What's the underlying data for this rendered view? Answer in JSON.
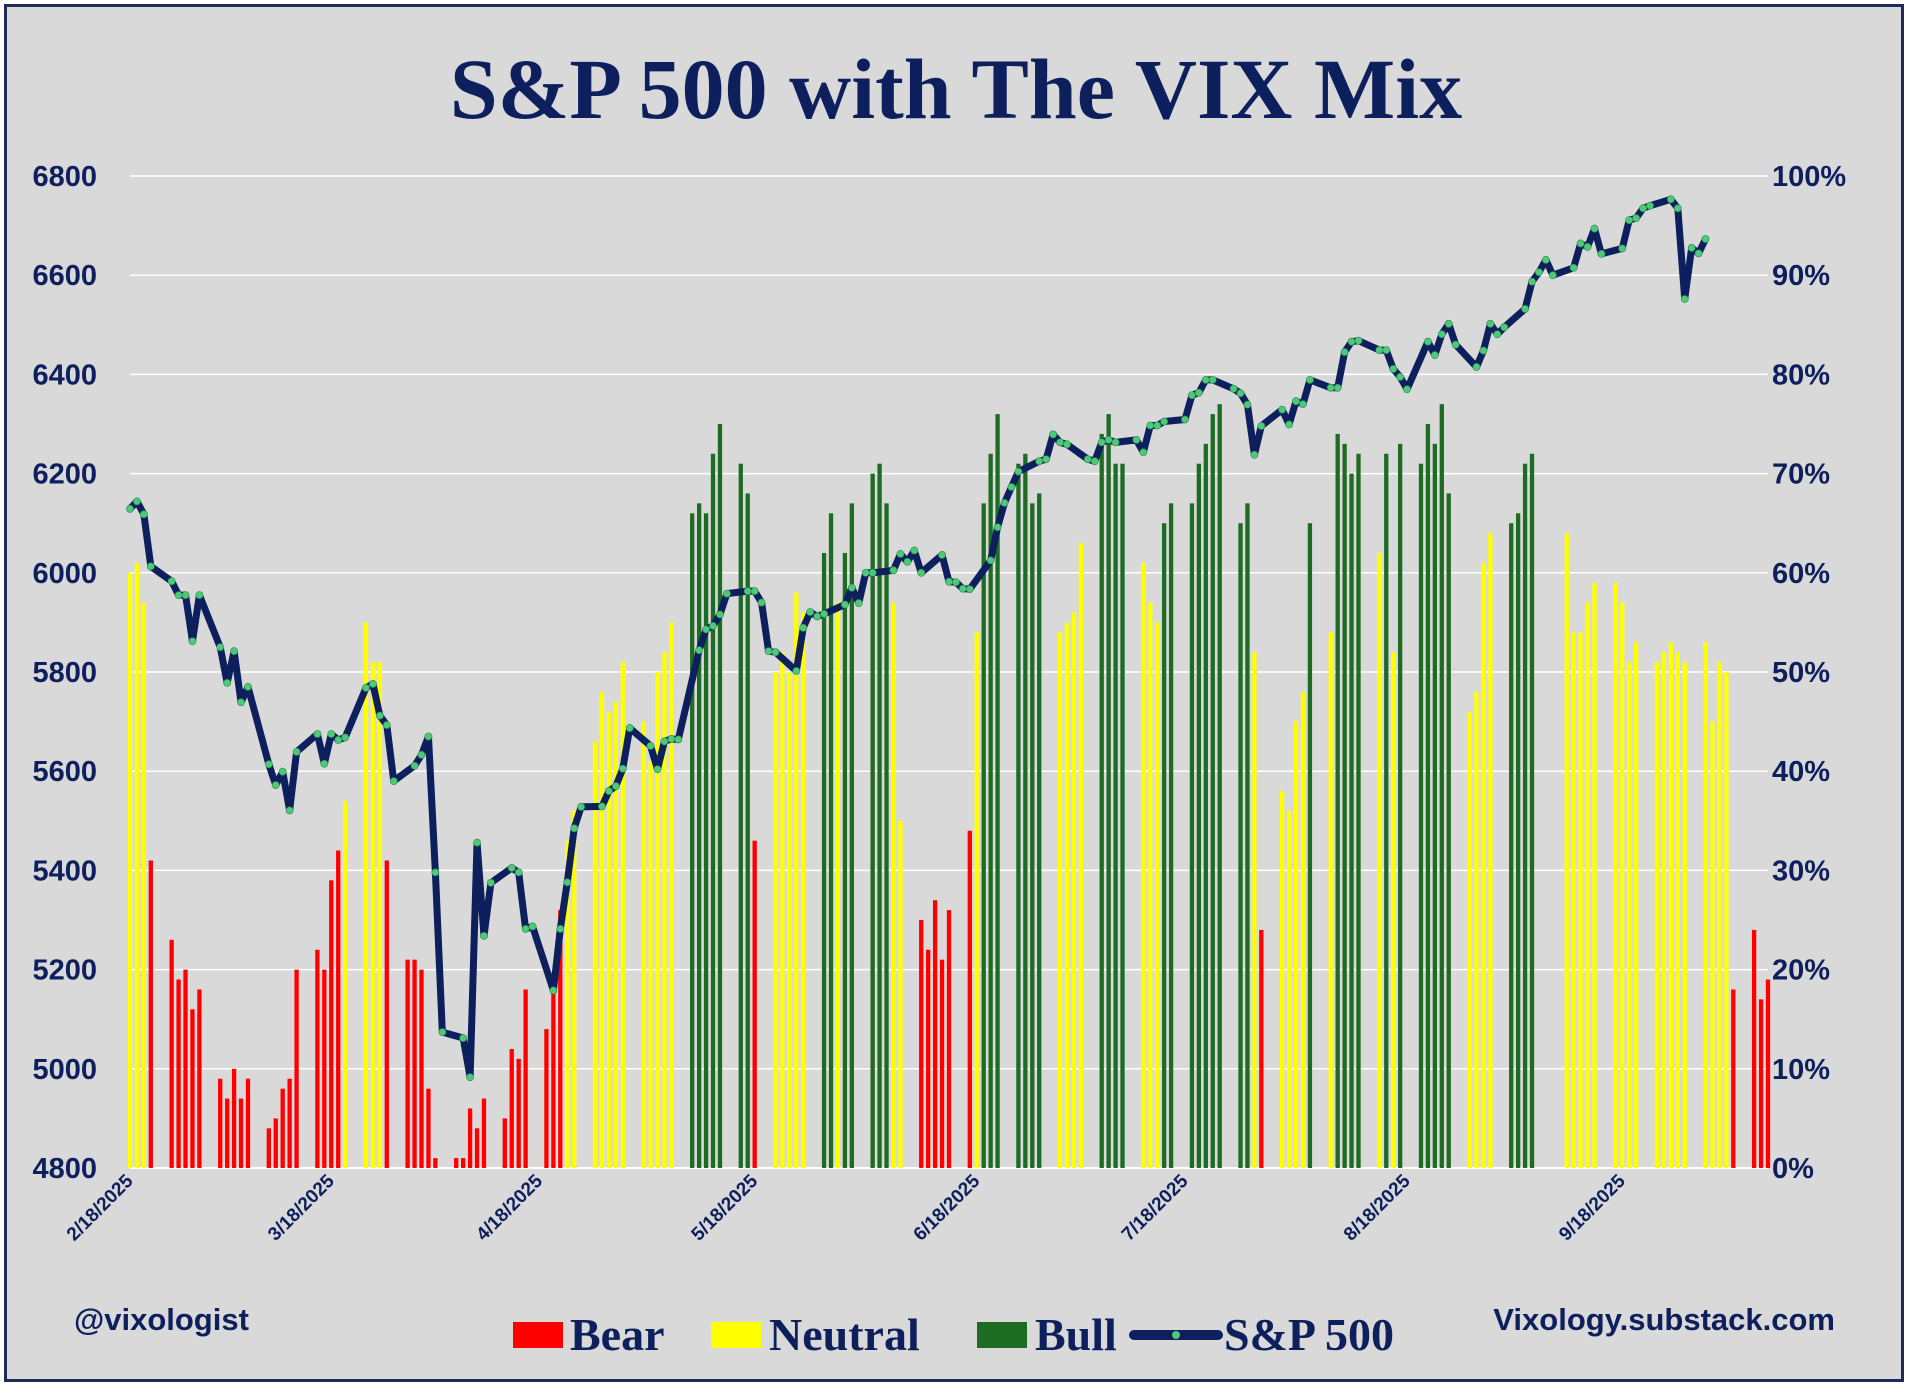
{
  "colors": {
    "background": "#d9d9d9",
    "text": "#0d1f5c",
    "bear": "#ff0000",
    "neutral": "#ffff00",
    "bull": "#1e6b24",
    "spx_line": "#0d1f5c",
    "spx_marker": "#4ec97a",
    "grid": "#ffffff"
  },
  "chart_data": {
    "type": "bar",
    "title": "S&P 500 with The VIX Mix",
    "left_axis": {
      "min": 4800,
      "max": 6800,
      "ticks": [
        "6800",
        "6600",
        "6400",
        "6200",
        "6000",
        "5800",
        "5600",
        "5400",
        "5200",
        "5000",
        "4800"
      ]
    },
    "right_axis": {
      "min": 0,
      "max": 100,
      "ticks": [
        "100%",
        "90%",
        "80%",
        "70%",
        "60%",
        "50%",
        "40%",
        "30%",
        "20%",
        "10%",
        "0%"
      ]
    },
    "x_tick_labels": [
      "2/18/2025",
      "3/18/2025",
      "4/18/2025",
      "5/18/2025",
      "6/18/2025",
      "7/18/2025",
      "8/18/2025",
      "9/18/2025"
    ],
    "grid": true,
    "legend_position": "bottom",
    "legend": [
      "Bear",
      "Neutral",
      "Bull",
      "S&P 500"
    ],
    "series_bars": {
      "name_key": "regime",
      "values_pct": [
        60,
        61,
        57,
        31,
        null,
        null,
        23,
        19,
        20,
        16,
        18,
        null,
        null,
        9,
        7,
        10,
        7,
        9,
        null,
        null,
        4,
        5,
        8,
        9,
        20,
        null,
        null,
        22,
        20,
        29,
        32,
        37,
        null,
        null,
        55,
        51,
        51,
        31,
        null,
        null,
        21,
        21,
        20,
        8,
        1,
        null,
        null,
        1,
        1,
        6,
        4,
        7,
        null,
        null,
        5,
        12,
        11,
        18,
        null,
        null,
        14,
        19,
        26,
        33,
        36,
        null,
        null,
        43,
        48,
        46,
        47,
        51,
        null,
        null,
        45,
        41,
        50,
        52,
        55,
        null,
        null,
        66,
        67,
        66,
        72,
        75,
        null,
        null,
        71,
        68,
        33,
        null,
        null,
        50,
        52,
        50,
        58,
        56,
        null,
        null,
        62,
        66,
        57,
        62,
        67,
        null,
        null,
        70,
        71,
        67,
        57,
        35,
        null,
        null,
        25,
        22,
        27,
        21,
        26,
        null,
        null,
        34,
        54,
        67,
        72,
        76,
        null,
        null,
        71,
        72,
        67,
        68,
        null,
        null,
        54,
        55,
        56,
        63,
        null,
        null,
        74,
        76,
        71,
        71,
        null,
        null,
        61,
        57,
        55,
        65,
        67,
        null,
        null,
        67,
        71,
        73,
        76,
        77,
        null,
        null,
        65,
        67,
        52,
        24,
        null,
        null,
        38,
        36,
        45,
        48,
        65,
        null,
        null,
        54,
        74,
        73,
        70,
        72,
        null,
        null,
        62,
        72,
        52,
        73,
        null,
        null,
        71,
        75,
        73,
        77,
        68,
        null,
        null,
        46,
        48,
        61,
        64,
        null,
        null,
        65,
        66,
        71,
        72,
        null,
        null,
        null,
        null,
        64,
        54,
        54,
        57,
        59,
        null,
        null,
        59,
        57,
        51,
        53,
        null,
        null,
        51,
        52,
        53,
        52,
        51,
        null,
        null,
        53,
        45,
        51,
        50,
        18,
        null,
        null,
        24,
        17,
        19
      ],
      "regimes": [
        "n",
        "n",
        "n",
        "r",
        null,
        null,
        "r",
        "r",
        "r",
        "r",
        "r",
        null,
        null,
        "r",
        "r",
        "r",
        "r",
        "r",
        null,
        null,
        "r",
        "r",
        "r",
        "r",
        "r",
        null,
        null,
        "r",
        "r",
        "r",
        "r",
        "n",
        null,
        null,
        "n",
        "n",
        "n",
        "r",
        null,
        null,
        "r",
        "r",
        "r",
        "r",
        "r",
        null,
        null,
        "r",
        "r",
        "r",
        "r",
        "r",
        null,
        null,
        "r",
        "r",
        "r",
        "r",
        null,
        null,
        "r",
        "r",
        "r",
        "n",
        "n",
        null,
        null,
        "n",
        "n",
        "n",
        "n",
        "n",
        null,
        null,
        "n",
        "n",
        "n",
        "n",
        "n",
        null,
        null,
        "g",
        "g",
        "g",
        "g",
        "g",
        null,
        null,
        "g",
        "g",
        "r",
        null,
        null,
        "n",
        "n",
        "n",
        "n",
        "n",
        null,
        null,
        "g",
        "g",
        "n",
        "g",
        "g",
        null,
        null,
        "g",
        "g",
        "g",
        "n",
        "n",
        null,
        null,
        "r",
        "r",
        "r",
        "r",
        "r",
        null,
        null,
        "r",
        "n",
        "g",
        "g",
        "g",
        null,
        null,
        "g",
        "g",
        "g",
        "g",
        null,
        null,
        "n",
        "n",
        "n",
        "n",
        null,
        null,
        "g",
        "g",
        "g",
        "g",
        null,
        null,
        "n",
        "n",
        "n",
        "g",
        "g",
        null,
        null,
        "g",
        "g",
        "g",
        "g",
        "g",
        null,
        null,
        "g",
        "g",
        "n",
        "r",
        null,
        null,
        "n",
        "n",
        "n",
        "n",
        "g",
        null,
        null,
        "n",
        "g",
        "g",
        "g",
        "g",
        null,
        null,
        "n",
        "g",
        "n",
        "g",
        null,
        null,
        "g",
        "g",
        "g",
        "g",
        "g",
        null,
        null,
        "n",
        "n",
        "n",
        "n",
        null,
        null,
        "g",
        "g",
        "g",
        "g",
        null,
        null,
        null,
        null,
        "n",
        "n",
        "n",
        "n",
        "n",
        null,
        null,
        "n",
        "n",
        "n",
        "n",
        null,
        null,
        "n",
        "n",
        "n",
        "n",
        "n",
        null,
        null,
        "n",
        "n",
        "n",
        "n",
        "r",
        null,
        null,
        "r",
        "r",
        "r"
      ]
    },
    "series_line": {
      "name": "S&P 500",
      "points": [
        [
          0,
          6129
        ],
        [
          1,
          6144
        ],
        [
          2,
          6118
        ],
        [
          3,
          6013
        ],
        [
          6,
          5983
        ],
        [
          7,
          5955
        ],
        [
          8,
          5955
        ],
        [
          9,
          5862
        ],
        [
          10,
          5955
        ],
        [
          13,
          5850
        ],
        [
          14,
          5778
        ],
        [
          15,
          5842
        ],
        [
          16,
          5739
        ],
        [
          17,
          5770
        ],
        [
          20,
          5614
        ],
        [
          21,
          5572
        ],
        [
          22,
          5599
        ],
        [
          23,
          5521
        ],
        [
          24,
          5639
        ],
        [
          27,
          5675
        ],
        [
          28,
          5615
        ],
        [
          29,
          5675
        ],
        [
          30,
          5663
        ],
        [
          31,
          5668
        ],
        [
          34,
          5768
        ],
        [
          35,
          5776
        ],
        [
          36,
          5712
        ],
        [
          37,
          5693
        ],
        [
          38,
          5580
        ],
        [
          41,
          5611
        ],
        [
          42,
          5633
        ],
        [
          43,
          5670
        ],
        [
          44,
          5396
        ],
        [
          45,
          5074
        ],
        [
          48,
          5062
        ],
        [
          49,
          4983
        ],
        [
          50,
          5456
        ],
        [
          51,
          5268
        ],
        [
          52,
          5375
        ],
        [
          55,
          5405
        ],
        [
          56,
          5396
        ],
        [
          57,
          5282
        ],
        [
          58,
          5287
        ],
        [
          61,
          5158
        ],
        [
          62,
          5282
        ],
        [
          63,
          5376
        ],
        [
          64,
          5485
        ],
        [
          65,
          5528
        ],
        [
          68,
          5529
        ],
        [
          69,
          5560
        ],
        [
          70,
          5570
        ],
        [
          71,
          5605
        ],
        [
          72,
          5687
        ],
        [
          75,
          5651
        ],
        [
          76,
          5604
        ],
        [
          77,
          5660
        ],
        [
          78,
          5665
        ],
        [
          79,
          5664
        ],
        [
          82,
          5844
        ],
        [
          83,
          5886
        ],
        [
          84,
          5893
        ],
        [
          85,
          5916
        ],
        [
          86,
          5958
        ],
        [
          89,
          5963
        ],
        [
          90,
          5963
        ],
        [
          91,
          5940
        ],
        [
          92,
          5842
        ],
        [
          93,
          5840
        ],
        [
          96,
          5802
        ],
        [
          97,
          5889
        ],
        [
          98,
          5921
        ],
        [
          99,
          5912
        ],
        [
          100,
          5917
        ],
        [
          103,
          5936
        ],
        [
          104,
          5970
        ],
        [
          105,
          5939
        ],
        [
          106,
          6000
        ],
        [
          107,
          6000
        ],
        [
          110,
          6005
        ],
        [
          111,
          6038
        ],
        [
          112,
          6022
        ],
        [
          113,
          6045
        ],
        [
          114,
          6000
        ],
        [
          117,
          6036
        ],
        [
          118,
          5982
        ],
        [
          119,
          5981
        ],
        [
          120,
          5968
        ],
        [
          121,
          5967
        ],
        [
          124,
          6025
        ],
        [
          125,
          6092
        ],
        [
          126,
          6141
        ],
        [
          127,
          6173
        ],
        [
          128,
          6204
        ],
        [
          131,
          6225
        ],
        [
          132,
          6229
        ],
        [
          133,
          6279
        ],
        [
          134,
          6263
        ],
        [
          135,
          6259
        ],
        [
          138,
          6229
        ],
        [
          139,
          6225
        ],
        [
          140,
          6263
        ],
        [
          141,
          6268
        ],
        [
          142,
          6263
        ],
        [
          145,
          6268
        ],
        [
          146,
          6243
        ],
        [
          147,
          6297
        ],
        [
          148,
          6297
        ],
        [
          149,
          6305
        ],
        [
          152,
          6309
        ],
        [
          153,
          6358
        ],
        [
          154,
          6363
        ],
        [
          155,
          6389
        ],
        [
          156,
          6389
        ],
        [
          159,
          6371
        ],
        [
          160,
          6362
        ],
        [
          161,
          6339
        ],
        [
          162,
          6238
        ],
        [
          163,
          6296
        ],
        [
          166,
          6329
        ],
        [
          167,
          6299
        ],
        [
          168,
          6346
        ],
        [
          169,
          6340
        ],
        [
          170,
          6389
        ],
        [
          173,
          6373
        ],
        [
          174,
          6373
        ],
        [
          175,
          6445
        ],
        [
          176,
          6466
        ],
        [
          177,
          6468
        ],
        [
          180,
          6449
        ],
        [
          181,
          6449
        ],
        [
          182,
          6411
        ],
        [
          183,
          6395
        ],
        [
          184,
          6370
        ],
        [
          187,
          6466
        ],
        [
          188,
          6439
        ],
        [
          189,
          6481
        ],
        [
          190,
          6502
        ],
        [
          191,
          6460
        ],
        [
          194,
          6415
        ],
        [
          195,
          6448
        ],
        [
          196,
          6502
        ],
        [
          197,
          6481
        ],
        [
          198,
          6495
        ],
        [
          201,
          6532
        ],
        [
          202,
          6587
        ],
        [
          203,
          6606
        ],
        [
          204,
          6631
        ],
        [
          205,
          6600
        ],
        [
          208,
          6615
        ],
        [
          209,
          6664
        ],
        [
          210,
          6657
        ],
        [
          211,
          6694
        ],
        [
          212,
          6643
        ],
        [
          215,
          6654
        ],
        [
          216,
          6711
        ],
        [
          217,
          6715
        ],
        [
          218,
          6735
        ],
        [
          219,
          6740
        ],
        [
          222,
          6753
        ],
        [
          223,
          6735
        ],
        [
          224,
          6552
        ],
        [
          225,
          6655
        ],
        [
          226,
          6644
        ],
        [
          227,
          6673
        ]
      ],
      "x_index_range": [
        0,
        227
      ]
    }
  },
  "credits": {
    "handle": "@vixologist",
    "site": "Vixology.substack.com"
  }
}
